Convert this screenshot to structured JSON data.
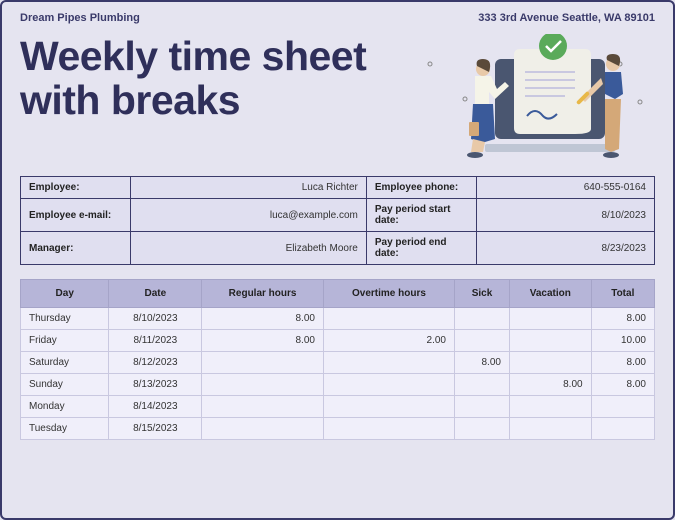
{
  "header": {
    "company": "Dream Pipes Plumbing",
    "address": "333 3rd Avenue Seattle, WA 89101"
  },
  "title_line1": "Weekly time sheet",
  "title_line2": "with breaks",
  "info": {
    "employee_label": "Employee:",
    "employee_value": "Luca Richter",
    "phone_label": "Employee phone:",
    "phone_value": "640-555-0164",
    "email_label": "Employee e-mail:",
    "email_value": "luca@example.com",
    "start_label": "Pay period start date:",
    "start_value": "8/10/2023",
    "manager_label": "Manager:",
    "manager_value": "Elizabeth Moore",
    "end_label": "Pay period end date:",
    "end_value": "8/23/2023"
  },
  "columns": [
    "Day",
    "Date",
    "Regular hours",
    "Overtime hours",
    "Sick",
    "Vacation",
    "Total"
  ],
  "rows": [
    {
      "day": "Thursday",
      "date": "8/10/2023",
      "reg": "8.00",
      "ot": "",
      "sick": "",
      "vac": "",
      "total": "8.00"
    },
    {
      "day": "Friday",
      "date": "8/11/2023",
      "reg": "8.00",
      "ot": "2.00",
      "sick": "",
      "vac": "",
      "total": "10.00"
    },
    {
      "day": "Saturday",
      "date": "8/12/2023",
      "reg": "",
      "ot": "",
      "sick": "8.00",
      "vac": "",
      "total": "8.00"
    },
    {
      "day": "Sunday",
      "date": "8/13/2023",
      "reg": "",
      "ot": "",
      "sick": "",
      "vac": "8.00",
      "total": "8.00"
    },
    {
      "day": "Monday",
      "date": "8/14/2023",
      "reg": "",
      "ot": "",
      "sick": "",
      "vac": "",
      "total": ""
    },
    {
      "day": "Tuesday",
      "date": "8/15/2023",
      "reg": "",
      "ot": "",
      "sick": "",
      "vac": "",
      "total": ""
    }
  ],
  "colors": {
    "page_bg": "#e5e4f0",
    "border": "#3a3a6a",
    "title": "#2f2f5a",
    "th_bg": "#b6b5d8",
    "td_bg": "#f0effa",
    "info_bg": "#e0dff0"
  }
}
